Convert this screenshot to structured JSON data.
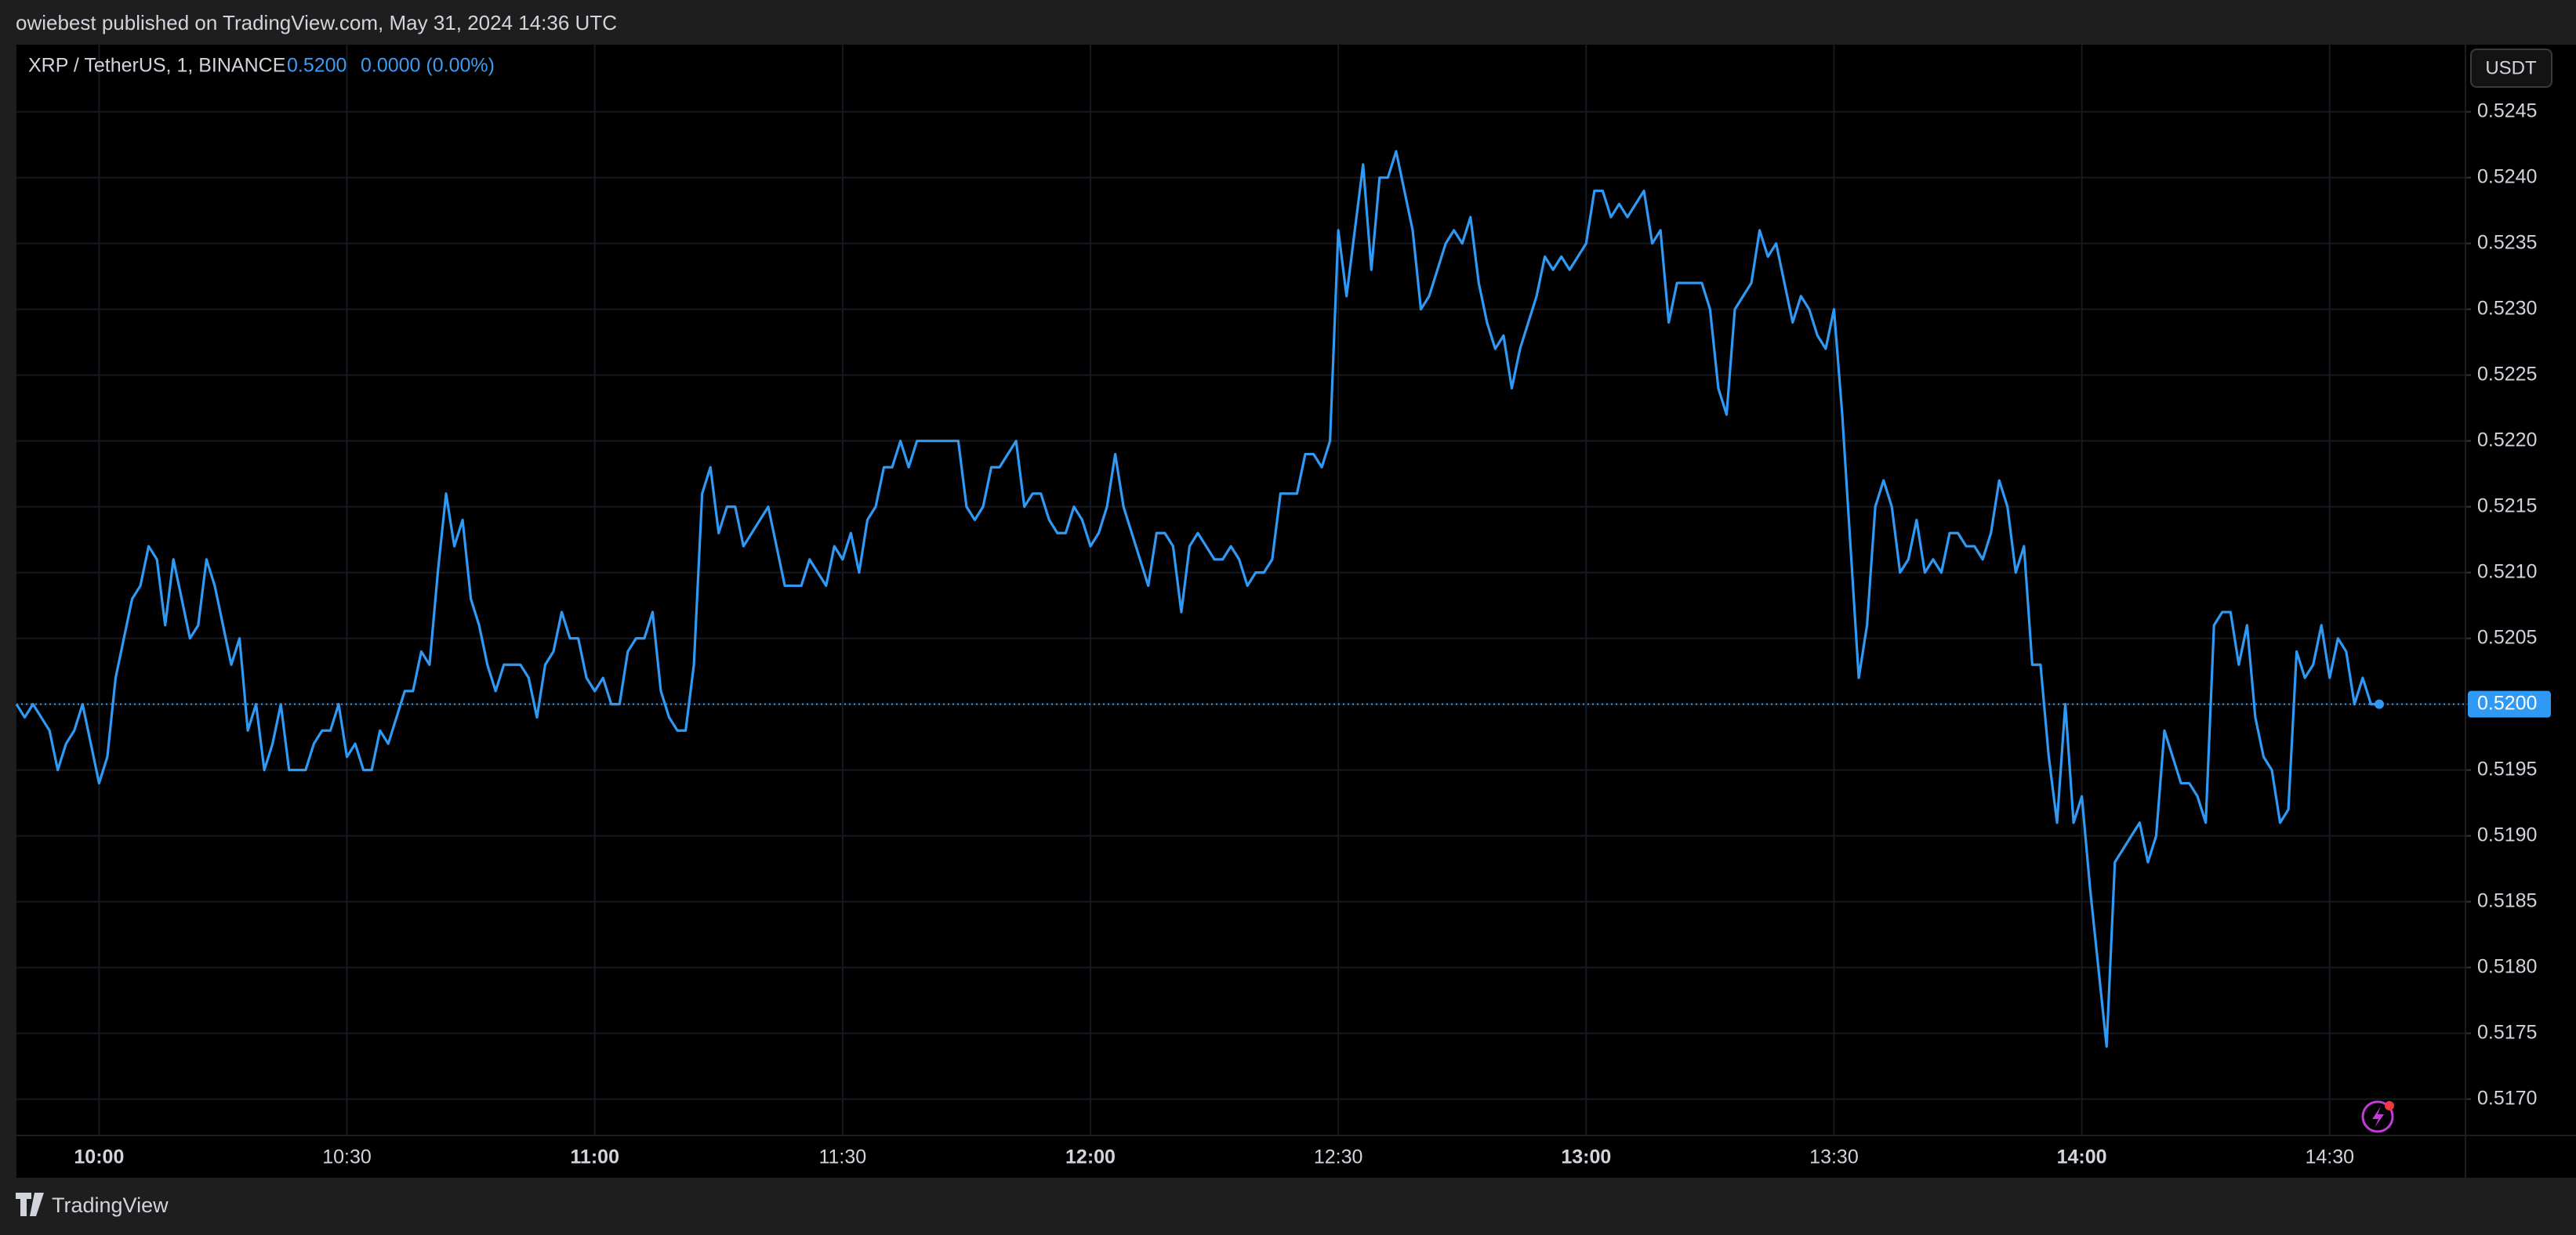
{
  "header": {
    "published": "owiebest published on TradingView.com, May 31, 2024 14:36 UTC"
  },
  "footer": {
    "brand": "TradingView"
  },
  "chart_data": {
    "type": "line",
    "legend": {
      "symbol": "XRP / TetherUS, 1, BINANCE",
      "price": "0.5200",
      "change": "0.0000 (0.00%)"
    },
    "currency": "USDT",
    "price_label": "0.5200",
    "color": "#2f9af5",
    "grid": true,
    "categories": [
      null,
      null,
      null,
      null,
      null,
      null,
      null,
      null,
      null,
      null,
      "10:00",
      null,
      null,
      null,
      null,
      null,
      null,
      null,
      null,
      null,
      null,
      null,
      null,
      null,
      null,
      null,
      null,
      null,
      null,
      null,
      null,
      null,
      null,
      null,
      null,
      null,
      null,
      null,
      null,
      null,
      "10:30",
      null,
      null,
      null,
      null,
      null,
      null,
      null,
      null,
      null,
      null,
      null,
      null,
      null,
      null,
      null,
      null,
      null,
      null,
      null,
      null,
      null,
      null,
      null,
      null,
      null,
      null,
      null,
      null,
      null,
      "11:00",
      null,
      null,
      null,
      null,
      null,
      null,
      null,
      null,
      null,
      null,
      null,
      null,
      null,
      null,
      null,
      null,
      null,
      null,
      null,
      null,
      null,
      null,
      null,
      null,
      null,
      null,
      null,
      null,
      null,
      "11:30",
      null,
      null,
      null,
      null,
      null,
      null,
      null,
      null,
      null,
      null,
      null,
      null,
      null,
      null,
      null,
      null,
      null,
      null,
      null,
      null,
      null,
      null,
      null,
      null,
      null,
      null,
      null,
      null,
      null,
      "12:00",
      null,
      null,
      null,
      null,
      null,
      null,
      null,
      null,
      null,
      null,
      null,
      null,
      null,
      null,
      null,
      null,
      null,
      null,
      null,
      null,
      null,
      null,
      null,
      null,
      null,
      null,
      null,
      null,
      null,
      "12:30",
      null,
      null,
      null,
      null,
      null,
      null,
      null,
      null,
      null,
      null,
      null,
      null,
      null,
      null,
      null,
      null,
      null,
      null,
      null,
      null,
      null,
      null,
      null,
      null,
      null,
      null,
      null,
      null,
      null,
      "13:00",
      null,
      null,
      null,
      null,
      null,
      null,
      null,
      null,
      null,
      null,
      null,
      null,
      null,
      null,
      null,
      null,
      null,
      null,
      null,
      null,
      null,
      null,
      null,
      null,
      null,
      null,
      null,
      null,
      null,
      "13:30",
      null,
      null,
      null,
      null,
      null,
      null,
      null,
      null,
      null,
      null,
      null,
      null,
      null,
      null,
      null,
      null,
      null,
      null,
      null,
      null,
      null,
      null,
      null,
      null,
      null,
      null,
      null,
      null,
      null,
      "14:00",
      null,
      null,
      null,
      null,
      null,
      null,
      null,
      null,
      null,
      null,
      null,
      null,
      null,
      null,
      null,
      null,
      null,
      null,
      null,
      null,
      null,
      null,
      null,
      null,
      null,
      null,
      null,
      null,
      null,
      "14:30",
      null,
      null,
      null,
      null,
      null,
      null
    ],
    "values": [
      0.52,
      0.5199,
      0.52,
      0.5199,
      0.5198,
      0.5195,
      0.5197,
      0.5198,
      0.52,
      0.5197,
      0.5194,
      0.5196,
      0.5202,
      0.5205,
      0.5208,
      0.5209,
      0.5212,
      0.5211,
      0.5206,
      0.5211,
      0.5208,
      0.5205,
      0.5206,
      0.5211,
      0.5209,
      0.5206,
      0.5203,
      0.5205,
      0.5198,
      0.52,
      0.5195,
      0.5197,
      0.52,
      0.5195,
      0.5195,
      0.5195,
      0.5197,
      0.5198,
      0.5198,
      0.52,
      0.5196,
      0.5197,
      0.5195,
      0.5195,
      0.5198,
      0.5197,
      0.5199,
      0.5201,
      0.5201,
      0.5204,
      0.5203,
      0.521,
      0.5216,
      0.5212,
      0.5214,
      0.5208,
      0.5206,
      0.5203,
      0.5201,
      0.5203,
      0.5203,
      0.5203,
      0.5202,
      0.5199,
      0.5203,
      0.5204,
      0.5207,
      0.5205,
      0.5205,
      0.5202,
      0.5201,
      0.5202,
      0.52,
      0.52,
      0.5204,
      0.5205,
      0.5205,
      0.5207,
      0.5201,
      0.5199,
      0.5198,
      0.5198,
      0.5203,
      0.5216,
      0.5218,
      0.5213,
      0.5215,
      0.5215,
      0.5212,
      0.5213,
      0.5214,
      0.5215,
      0.5212,
      0.5209,
      0.5209,
      0.5209,
      0.5211,
      0.521,
      0.5209,
      0.5212,
      0.5211,
      0.5213,
      0.521,
      0.5214,
      0.5215,
      0.5218,
      0.5218,
      0.522,
      0.5218,
      0.522,
      0.522,
      0.522,
      0.522,
      0.522,
      0.522,
      0.5215,
      0.5214,
      0.5215,
      0.5218,
      0.5218,
      0.5219,
      0.522,
      0.5215,
      0.5216,
      0.5216,
      0.5214,
      0.5213,
      0.5213,
      0.5215,
      0.5214,
      0.5212,
      0.5213,
      0.5215,
      0.5219,
      0.5215,
      0.5213,
      0.5211,
      0.5209,
      0.5213,
      0.5213,
      0.5212,
      0.5207,
      0.5212,
      0.5213,
      0.5212,
      0.5211,
      0.5211,
      0.5212,
      0.5211,
      0.5209,
      0.521,
      0.521,
      0.5211,
      0.5216,
      0.5216,
      0.5216,
      0.5219,
      0.5219,
      0.5218,
      0.522,
      0.5236,
      0.5231,
      0.5236,
      0.5241,
      0.5233,
      0.524,
      0.524,
      0.5242,
      0.5239,
      0.5236,
      0.523,
      0.5231,
      0.5233,
      0.5235,
      0.5236,
      0.5235,
      0.5237,
      0.5232,
      0.5229,
      0.5227,
      0.5228,
      0.5224,
      0.5227,
      0.5229,
      0.5231,
      0.5234,
      0.5233,
      0.5234,
      0.5233,
      0.5234,
      0.5235,
      0.5239,
      0.5239,
      0.5237,
      0.5238,
      0.5237,
      0.5238,
      0.5239,
      0.5235,
      0.5236,
      0.5229,
      0.5232,
      0.5232,
      0.5232,
      0.5232,
      0.523,
      0.5224,
      0.5222,
      0.523,
      0.5231,
      0.5232,
      0.5236,
      0.5234,
      0.5235,
      0.5232,
      0.5229,
      0.5231,
      0.523,
      0.5228,
      0.5227,
      0.523,
      0.5222,
      0.5212,
      0.5202,
      0.5206,
      0.5215,
      0.5217,
      0.5215,
      0.521,
      0.5211,
      0.5214,
      0.521,
      0.5211,
      0.521,
      0.5213,
      0.5213,
      0.5212,
      0.5212,
      0.5211,
      0.5213,
      0.5217,
      0.5215,
      0.521,
      0.5212,
      0.5203,
      0.5203,
      0.5196,
      0.5191,
      0.52,
      0.5191,
      0.5193,
      0.5186,
      0.518,
      0.5174,
      0.5188,
      0.5189,
      0.519,
      0.5191,
      0.5188,
      0.519,
      0.5198,
      0.5196,
      0.5194,
      0.5194,
      0.5193,
      0.5191,
      0.5206,
      0.5207,
      0.5207,
      0.5203,
      0.5206,
      0.5199,
      0.5196,
      0.5195,
      0.5191,
      0.5192,
      0.5204,
      0.5202,
      0.5203,
      0.5206,
      0.5202,
      0.5205,
      0.5204,
      0.52,
      0.5202,
      0.52,
      0.52
    ],
    "ylim": [
      0.51673,
      0.52501
    ],
    "yticks": [
      {
        "value": 0.517,
        "label": "0.5170"
      },
      0.5175,
      {
        "value": 0.518,
        "label": "0.5180"
      },
      0.5185,
      {
        "value": 0.519,
        "label": "0.5190"
      },
      0.5195,
      {
        "value": 0.52,
        "label": "0.5200"
      },
      0.5205,
      {
        "value": 0.521,
        "label": "0.5210"
      },
      0.5215,
      {
        "value": 0.522,
        "label": "0.5220"
      },
      0.5225,
      {
        "value": 0.523,
        "label": "0.5230"
      },
      0.5235,
      {
        "value": 0.524,
        "label": "0.5240"
      },
      0.5245
    ]
  }
}
